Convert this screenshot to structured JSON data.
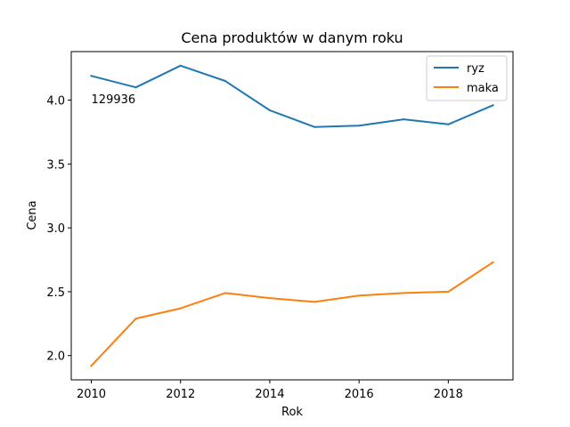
{
  "chart_data": {
    "type": "line",
    "title": "Cena produktów w danym roku",
    "xlabel": "Rok",
    "ylabel": "Cena",
    "x": [
      2010,
      2011,
      2012,
      2013,
      2014,
      2015,
      2016,
      2017,
      2018,
      2019
    ],
    "series": [
      {
        "name": "ryz",
        "color": "#1f77b4",
        "values": [
          4.19,
          4.1,
          4.27,
          4.15,
          3.92,
          3.79,
          3.8,
          3.85,
          3.81,
          3.96
        ]
      },
      {
        "name": "maka",
        "color": "#ff7f0e",
        "values": [
          1.92,
          2.29,
          2.37,
          2.49,
          2.45,
          2.42,
          2.47,
          2.49,
          2.5,
          2.73
        ]
      }
    ],
    "xlim": [
      2009.55,
      2019.45
    ],
    "ylim": [
      1.81,
      4.38
    ],
    "xticks": [
      "2010",
      "2012",
      "2014",
      "2016",
      "2018"
    ],
    "yticks": [
      "2.0",
      "2.5",
      "3.0",
      "3.5",
      "4.0"
    ],
    "annotation": {
      "text": "129936",
      "x": 2010,
      "y": 4.01
    },
    "legend_position": "top-right",
    "grid": false
  }
}
